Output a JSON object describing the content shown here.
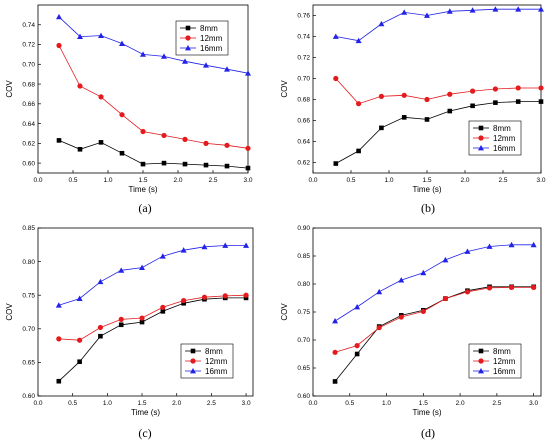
{
  "chart_data": [
    {
      "type": "line",
      "caption": "(a)",
      "xlabel": "Time (s)",
      "ylabel": "COV",
      "xlim": [
        0.0,
        3.0
      ],
      "ylim": [
        0.59,
        0.76
      ],
      "xticks": [
        "0.0",
        "0.5",
        "1.0",
        "1.5",
        "2.0",
        "2.5",
        "3.0"
      ],
      "yticks": [
        "0.60",
        "0.62",
        "0.64",
        "0.66",
        "0.68",
        "0.70",
        "0.72",
        "0.74"
      ],
      "legend_position": "top-right",
      "x": [
        0.3,
        0.6,
        0.9,
        1.2,
        1.5,
        1.8,
        2.1,
        2.4,
        2.7,
        3.0
      ],
      "series": [
        {
          "name": "8mm",
          "values": [
            0.623,
            0.614,
            0.621,
            0.61,
            0.599,
            0.6,
            0.599,
            0.598,
            0.597,
            0.595
          ]
        },
        {
          "name": "12mm",
          "values": [
            0.719,
            0.678,
            0.667,
            0.649,
            0.632,
            0.628,
            0.624,
            0.62,
            0.618,
            0.615
          ]
        },
        {
          "name": "16mm",
          "values": [
            0.748,
            0.728,
            0.729,
            0.721,
            0.71,
            0.708,
            0.703,
            0.699,
            0.695,
            0.691
          ]
        }
      ]
    },
    {
      "type": "line",
      "caption": "(b)",
      "xlabel": "Time (s)",
      "ylabel": "COV",
      "xlim": [
        0.0,
        3.0
      ],
      "ylim": [
        0.61,
        0.77
      ],
      "xticks": [
        "0.0",
        "0.5",
        "1.0",
        "1.5",
        "2.0",
        "2.5",
        "3.0"
      ],
      "yticks": [
        "0.62",
        "0.64",
        "0.66",
        "0.68",
        "0.70",
        "0.72",
        "0.74",
        "0.76"
      ],
      "legend_position": "bottom-right",
      "x": [
        0.3,
        0.6,
        0.9,
        1.2,
        1.5,
        1.8,
        2.1,
        2.4,
        2.7,
        3.0
      ],
      "series": [
        {
          "name": "8mm",
          "values": [
            0.619,
            0.631,
            0.653,
            0.663,
            0.661,
            0.669,
            0.674,
            0.677,
            0.678,
            0.678
          ]
        },
        {
          "name": "12mm",
          "values": [
            0.7,
            0.676,
            0.683,
            0.684,
            0.68,
            0.685,
            0.688,
            0.69,
            0.691,
            0.691
          ]
        },
        {
          "name": "16mm",
          "values": [
            0.74,
            0.736,
            0.752,
            0.763,
            0.76,
            0.764,
            0.765,
            0.766,
            0.766,
            0.766
          ]
        }
      ]
    },
    {
      "type": "line",
      "caption": "(c)",
      "xlabel": "Time (s)",
      "ylabel": "COV",
      "xlim": [
        0.0,
        3.1
      ],
      "ylim": [
        0.6,
        0.85
      ],
      "xticks": [
        "0.0",
        "0.5",
        "1.0",
        "1.5",
        "2.0",
        "2.5",
        "3.0"
      ],
      "yticks": [
        "0.60",
        "0.65",
        "0.70",
        "0.75",
        "0.80",
        "0.85"
      ],
      "legend_position": "bottom-right",
      "x": [
        0.3,
        0.6,
        0.9,
        1.2,
        1.5,
        1.8,
        2.1,
        2.4,
        2.7,
        3.0
      ],
      "series": [
        {
          "name": "8mm",
          "values": [
            0.622,
            0.651,
            0.689,
            0.706,
            0.71,
            0.726,
            0.738,
            0.744,
            0.746,
            0.746
          ]
        },
        {
          "name": "12mm",
          "values": [
            0.685,
            0.683,
            0.702,
            0.714,
            0.716,
            0.732,
            0.742,
            0.747,
            0.749,
            0.75
          ]
        },
        {
          "name": "16mm",
          "values": [
            0.735,
            0.745,
            0.77,
            0.787,
            0.791,
            0.808,
            0.817,
            0.822,
            0.824,
            0.824
          ]
        }
      ]
    },
    {
      "type": "line",
      "caption": "(d)",
      "xlabel": "Time (s)",
      "ylabel": "COV",
      "xlim": [
        0.0,
        3.1
      ],
      "ylim": [
        0.6,
        0.9
      ],
      "xticks": [
        "0.0",
        "0.5",
        "1.0",
        "1.5",
        "2.0",
        "2.5",
        "3.0"
      ],
      "yticks": [
        "0.60",
        "0.65",
        "0.70",
        "0.75",
        "0.80",
        "0.85",
        "0.90"
      ],
      "legend_position": "bottom-right",
      "x": [
        0.3,
        0.6,
        0.9,
        1.2,
        1.5,
        1.8,
        2.1,
        2.4,
        2.7,
        3.0
      ],
      "series": [
        {
          "name": "8mm",
          "values": [
            0.626,
            0.675,
            0.724,
            0.744,
            0.753,
            0.774,
            0.788,
            0.795,
            0.795,
            0.795
          ]
        },
        {
          "name": "12mm",
          "values": [
            0.678,
            0.69,
            0.722,
            0.741,
            0.751,
            0.774,
            0.786,
            0.793,
            0.794,
            0.794
          ]
        },
        {
          "name": "16mm",
          "values": [
            0.734,
            0.759,
            0.786,
            0.807,
            0.82,
            0.843,
            0.858,
            0.867,
            0.87,
            0.87
          ]
        }
      ]
    }
  ],
  "colors": {
    "8mm": "#000000",
    "12mm": "#e41a1c",
    "16mm": "#2323e8"
  }
}
